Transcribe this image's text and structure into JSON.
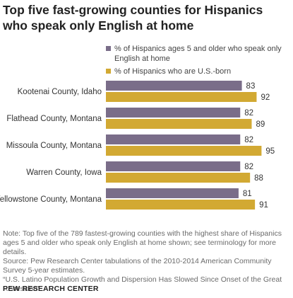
{
  "title": "Top five fast-growing counties for Hispanics who speak only English at home",
  "colors": {
    "series1": "#7a6d89",
    "series2": "#d2a933",
    "text": "#333333",
    "note": "#6b6b6b"
  },
  "chart_data": {
    "type": "bar",
    "orientation": "horizontal",
    "categories": [
      "Kootenai County, Idaho",
      "Flathead County, Montana",
      "Missoula County, Montana",
      "Warren County, Iowa",
      "Yellowstone County, Montana"
    ],
    "series": [
      {
        "name": "% of Hispanics ages 5 and older who speak only English at home",
        "values": [
          83,
          82,
          82,
          82,
          81
        ]
      },
      {
        "name": "% of Hispanics who are U.S.-born",
        "values": [
          92,
          89,
          95,
          88,
          91
        ]
      }
    ],
    "xlim": [
      0,
      100
    ],
    "grid": false,
    "legend_position": "top-right"
  },
  "notes": [
    "Note: Top five of the 789 fastest-growing counties with the highest share of Hispanics ages 5 and older who speak only English at home shown; see terminology for more details.",
    "Source: Pew Research Center tabulations of the 2010-2014 American Community Survey 5-year estimates.",
    "“U.S. Latino Population Growth and Dispersion Has Slowed Since Onset of the Great Recession”"
  ],
  "source_org": "PEW RESEARCH CENTER"
}
